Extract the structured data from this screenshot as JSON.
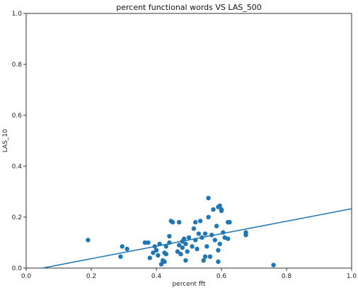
{
  "chart_data": {
    "type": "scatter",
    "title": "percent functional words VS LAS_500",
    "xlabel": "percent fft",
    "ylabel": "LAS_10",
    "xlim": [
      0.0,
      1.0
    ],
    "ylim": [
      0.0,
      1.0
    ],
    "xticks": [
      "0.0",
      "0.2",
      "0.4",
      "0.6",
      "0.8",
      "1.0"
    ],
    "yticks": [
      "0.0",
      "0.2",
      "0.4",
      "0.6",
      "0.8",
      "1.0"
    ],
    "grid": false,
    "point_color": "#1f77b4",
    "line_color": "#1f77b4",
    "points": [
      [
        0.19,
        0.11
      ],
      [
        0.29,
        0.045
      ],
      [
        0.295,
        0.085
      ],
      [
        0.31,
        0.075
      ],
      [
        0.365,
        0.1
      ],
      [
        0.375,
        0.1
      ],
      [
        0.38,
        0.04
      ],
      [
        0.39,
        0.06
      ],
      [
        0.395,
        0.085
      ],
      [
        0.4,
        0.07
      ],
      [
        0.405,
        0.05
      ],
      [
        0.41,
        0.095
      ],
      [
        0.415,
        0.015
      ],
      [
        0.42,
        0.03
      ],
      [
        0.425,
        0.025
      ],
      [
        0.425,
        0.06
      ],
      [
        0.43,
        0.085
      ],
      [
        0.43,
        0.055
      ],
      [
        0.44,
        0.1
      ],
      [
        0.44,
        0.125
      ],
      [
        0.445,
        0.185
      ],
      [
        0.45,
        0.18
      ],
      [
        0.465,
        0.065
      ],
      [
        0.47,
        0.18
      ],
      [
        0.47,
        0.09
      ],
      [
        0.475,
        0.055
      ],
      [
        0.48,
        0.105
      ],
      [
        0.48,
        0.08
      ],
      [
        0.485,
        0.115
      ],
      [
        0.49,
        0.03
      ],
      [
        0.49,
        0.095
      ],
      [
        0.495,
        0.065
      ],
      [
        0.5,
        0.12
      ],
      [
        0.51,
        0.085
      ],
      [
        0.515,
        0.155
      ],
      [
        0.52,
        0.18
      ],
      [
        0.52,
        0.11
      ],
      [
        0.525,
        0.075
      ],
      [
        0.53,
        0.135
      ],
      [
        0.535,
        0.185
      ],
      [
        0.54,
        0.12
      ],
      [
        0.545,
        0.03
      ],
      [
        0.55,
        0.045
      ],
      [
        0.55,
        0.135
      ],
      [
        0.555,
        0.085
      ],
      [
        0.56,
        0.275
      ],
      [
        0.56,
        0.2
      ],
      [
        0.565,
        0.045
      ],
      [
        0.57,
        0.13
      ],
      [
        0.575,
        0.23
      ],
      [
        0.58,
        0.11
      ],
      [
        0.585,
        0.165
      ],
      [
        0.59,
        0.07
      ],
      [
        0.59,
        0.025
      ],
      [
        0.59,
        0.24
      ],
      [
        0.595,
        0.095
      ],
      [
        0.595,
        0.245
      ],
      [
        0.6,
        0.225
      ],
      [
        0.6,
        0.23
      ],
      [
        0.605,
        0.14
      ],
      [
        0.61,
        0.12
      ],
      [
        0.62,
        0.115
      ],
      [
        0.62,
        0.18
      ],
      [
        0.625,
        0.18
      ],
      [
        0.675,
        0.14
      ],
      [
        0.675,
        0.13
      ],
      [
        0.76,
        0.012
      ]
    ],
    "fit_line": {
      "x": [
        0.05,
        1.0
      ],
      "y": [
        0.0,
        0.233
      ]
    }
  }
}
